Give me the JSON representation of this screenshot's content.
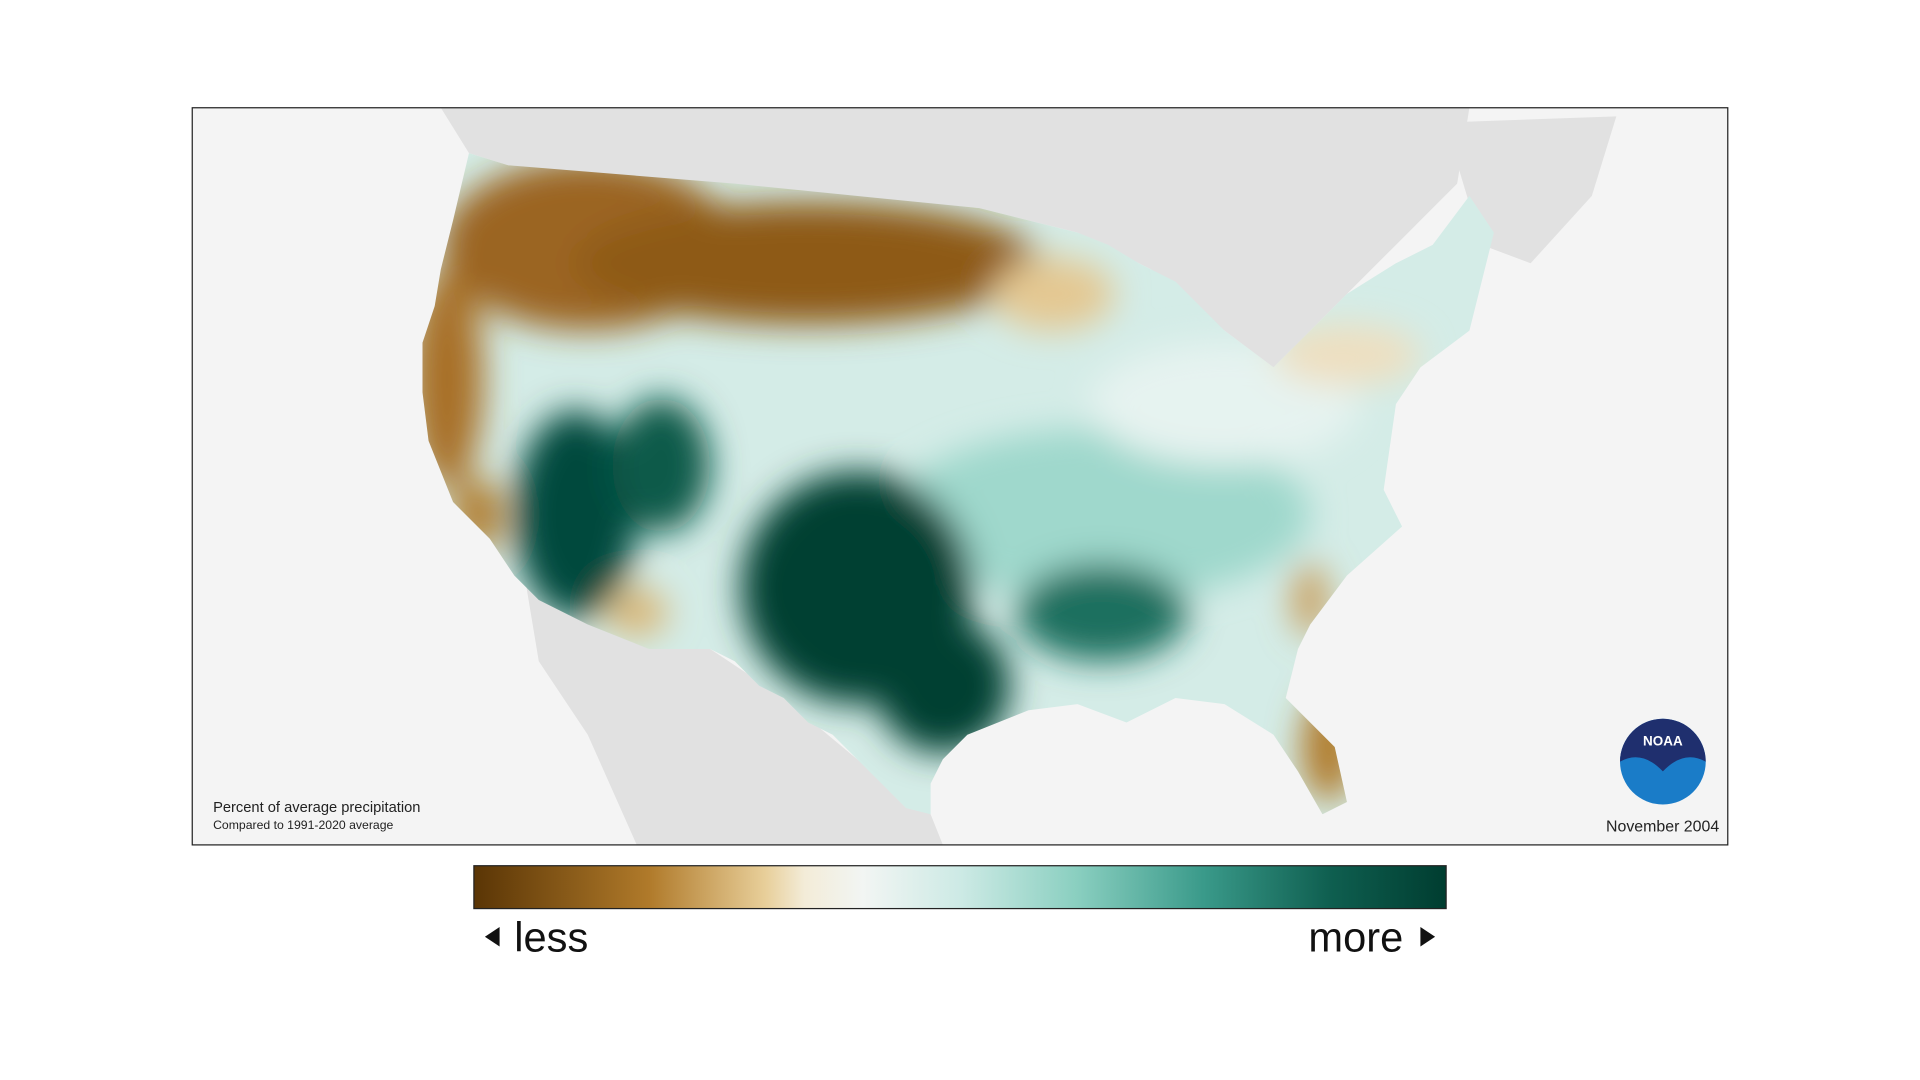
{
  "map": {
    "caption_title": "Percent of average precipitation",
    "caption_subtitle": "Compared to 1991-2020 average",
    "date": "November 2004",
    "logo_text": "NOAA"
  },
  "legend": {
    "low_label": "less",
    "high_label": "more"
  }
}
